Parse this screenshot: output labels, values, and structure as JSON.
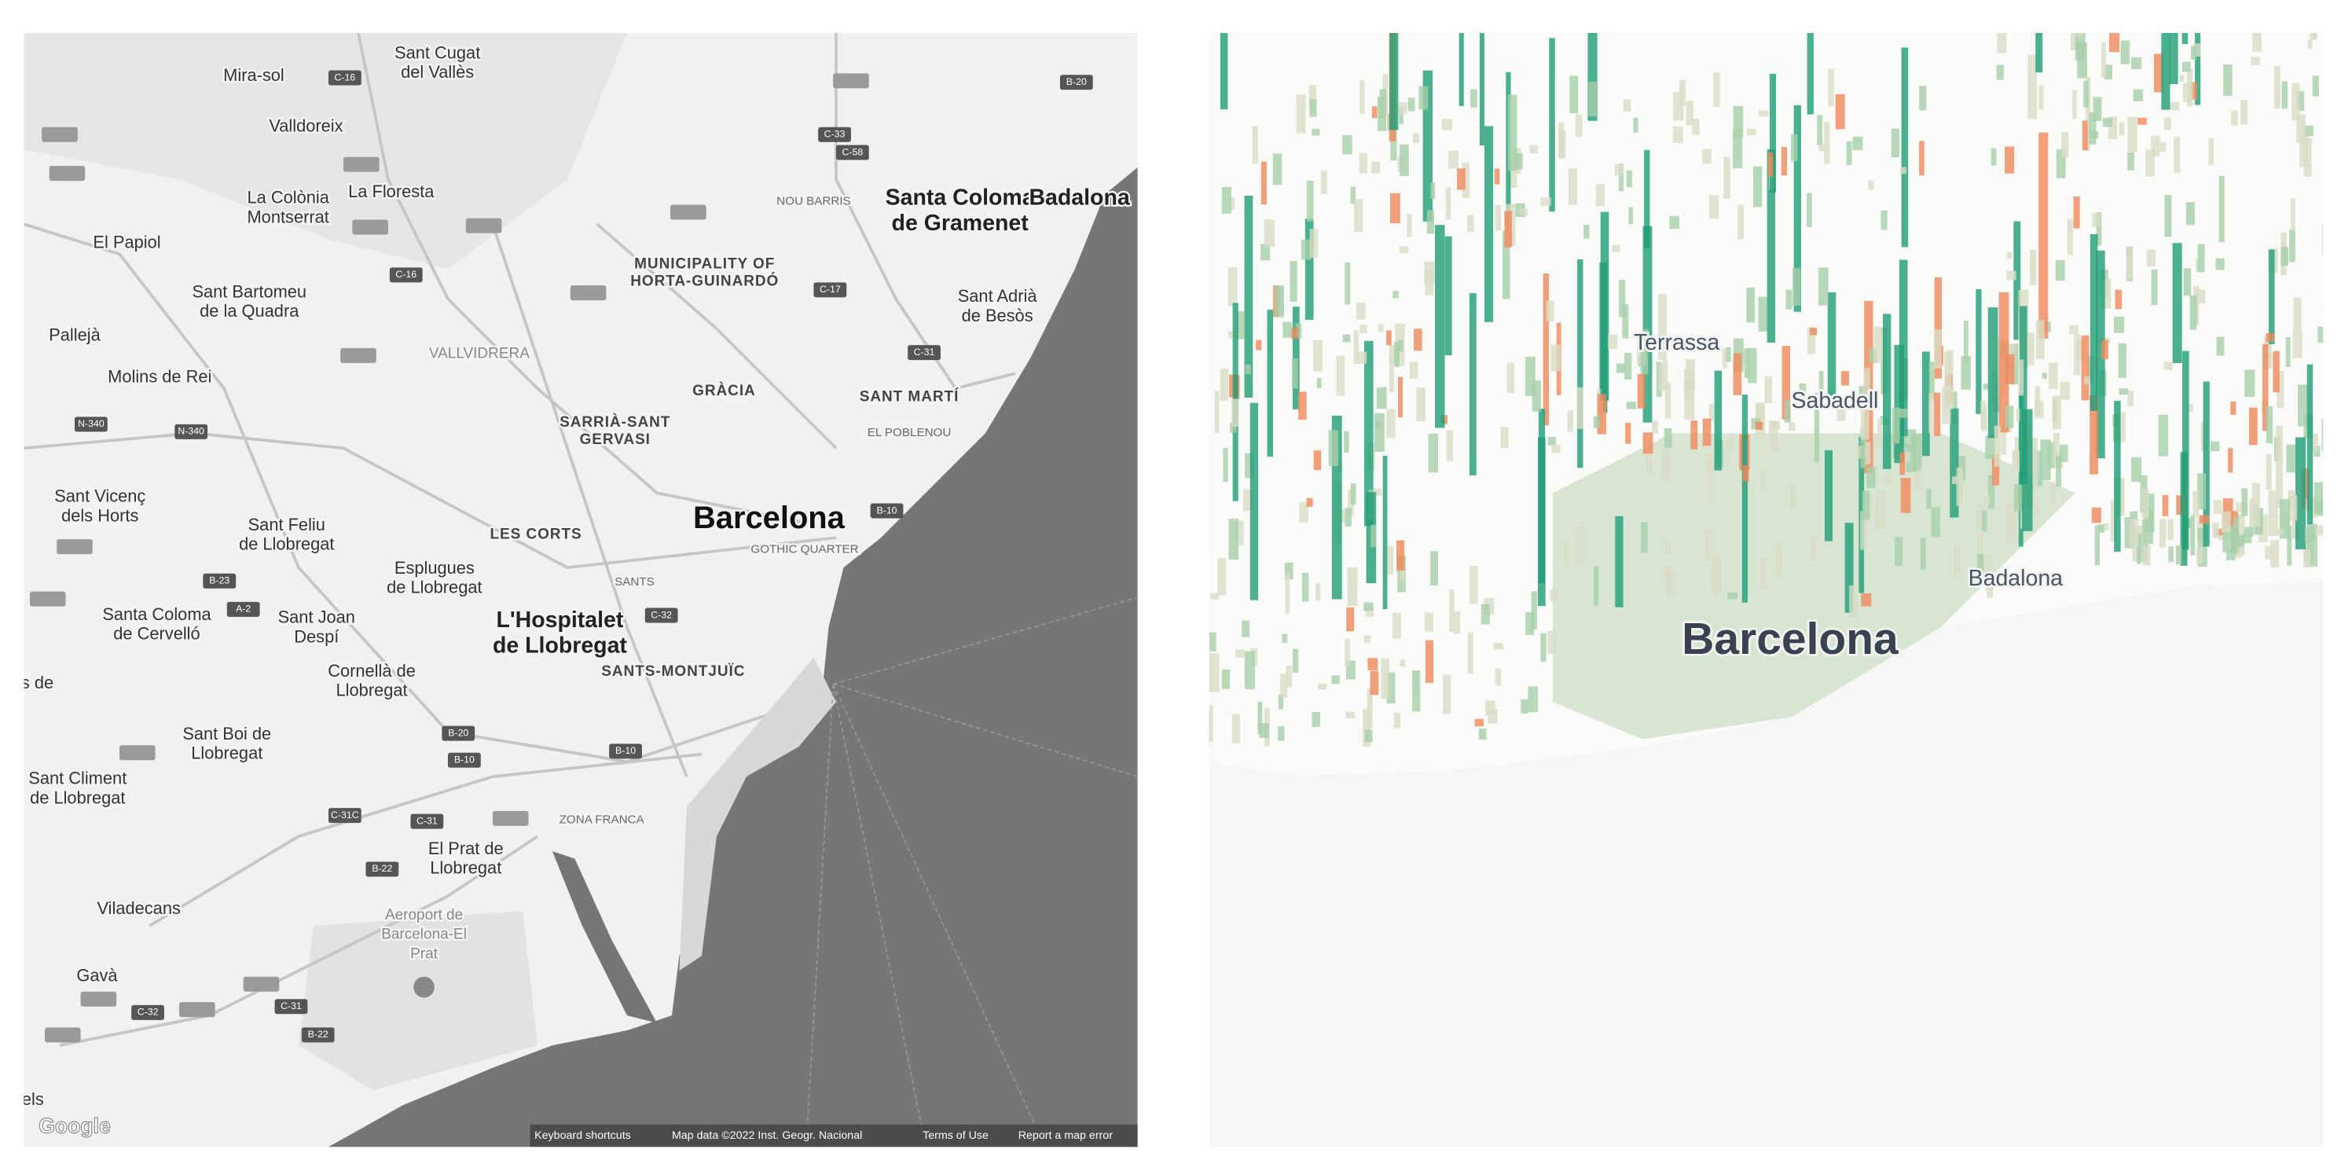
{
  "left_map": {
    "places": [
      {
        "lines": [
          "Mira-sol"
        ]
      },
      {
        "lines": [
          "Sant Cugat",
          "del Vallès"
        ]
      },
      {
        "lines": [
          "Valldoreix"
        ]
      },
      {
        "lines": [
          "La Colònia",
          "Montserrat"
        ]
      },
      {
        "lines": [
          "La Floresta"
        ]
      },
      {
        "lines": [
          "El Papiol"
        ]
      },
      {
        "lines": [
          "Sant Bartomeu",
          "de la Quadra"
        ]
      },
      {
        "lines": [
          "MUNICIPALITY OF",
          "HORTA-GUINARDÓ"
        ]
      },
      {
        "lines": [
          "NOU BARRIS"
        ]
      },
      {
        "lines": [
          "Santa Coloma",
          "de Gramenet"
        ]
      },
      {
        "lines": [
          "Badalona"
        ]
      },
      {
        "lines": [
          "Sant Adrià",
          "de Besòs"
        ]
      },
      {
        "lines": [
          "Pallejà"
        ]
      },
      {
        "lines": [
          "VALLVIDRERA"
        ]
      },
      {
        "lines": [
          "Molins de Rei"
        ]
      },
      {
        "lines": [
          "GRÀCIA"
        ]
      },
      {
        "lines": [
          "SANT MARTÍ"
        ]
      },
      {
        "lines": [
          "SARRIÀ-SANT",
          "GERVASI"
        ]
      },
      {
        "lines": [
          "EL POBLENOU"
        ]
      },
      {
        "lines": [
          "Sant Vicenç",
          "dels Horts"
        ]
      },
      {
        "lines": [
          "Sant Feliu",
          "de Llobregat"
        ]
      },
      {
        "lines": [
          "Barcelona"
        ]
      },
      {
        "lines": [
          "LES CORTS"
        ]
      },
      {
        "lines": [
          "GOTHIC QUARTER"
        ]
      },
      {
        "lines": [
          "Esplugues",
          "de Llobregat"
        ]
      },
      {
        "lines": [
          "SANTS"
        ]
      },
      {
        "lines": [
          "Santa Coloma",
          "de Cervelló"
        ]
      },
      {
        "lines": [
          "Sant Joan",
          "Despí"
        ]
      },
      {
        "lines": [
          "L'Hospitalet",
          "de Llobregat"
        ]
      },
      {
        "lines": [
          "SANTS-MONTJUÏC"
        ]
      },
      {
        "lines": [
          "Cornellà de",
          "Llobregat"
        ]
      },
      {
        "lines": [
          "s de"
        ]
      },
      {
        "lines": [
          "Sant Boi de",
          "Llobregat"
        ]
      },
      {
        "lines": [
          "Sant Climent",
          "de Llobregat"
        ]
      },
      {
        "lines": [
          "ZONA FRANCA"
        ]
      },
      {
        "lines": [
          "El Prat de",
          "Llobregat"
        ]
      },
      {
        "lines": [
          "Viladecans"
        ]
      },
      {
        "lines": [
          "Aeroport de",
          "Barcelona-El",
          "Prat"
        ]
      },
      {
        "lines": [
          "Gavà"
        ]
      },
      {
        "lines": [
          "els"
        ]
      }
    ],
    "shields": [
      "C-16",
      "C-33",
      "C-58",
      "B-20",
      "C-17",
      "C-31",
      "N-340",
      "N-340",
      "B-10",
      "B-23",
      "A-2",
      "C-32",
      "B-20",
      "B-10",
      "B-10",
      "C-31C",
      "C-31",
      "B-22",
      "C-31",
      "C-32",
      "B-22",
      "C-16"
    ],
    "footer": [
      "Keyboard shortcuts",
      "Map data ©2022 Inst. Geogr. Nacional",
      "Terms of Use",
      "Report a map error"
    ],
    "logo": "Google"
  },
  "right_map": {
    "labels": [
      "Terrassa",
      "Sabadell",
      "Badalona",
      "Barcelona"
    ]
  }
}
